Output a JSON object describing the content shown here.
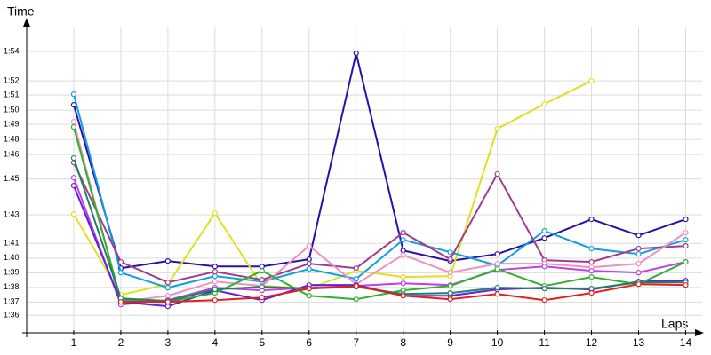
{
  "chart_data": {
    "type": "line",
    "y_label": "Time",
    "x_label": "Laps",
    "x": [
      1,
      2,
      3,
      4,
      5,
      6,
      7,
      8,
      9,
      10,
      11,
      12,
      13,
      14
    ],
    "xlim": [
      0,
      14.35
    ],
    "xticks": [
      1,
      2,
      3,
      4,
      5,
      6,
      7,
      8,
      9,
      10,
      11,
      12,
      13,
      14
    ],
    "ylim": [
      94.8,
      115.7
    ],
    "yticks": [
      {
        "value": 96,
        "label": "1:36"
      },
      {
        "value": 96.9,
        "label": "1:37"
      },
      {
        "value": 97.9,
        "label": "1:38"
      },
      {
        "value": 98.9,
        "label": "1:39"
      },
      {
        "value": 99.9,
        "label": "1:40"
      },
      {
        "value": 100.9,
        "label": "1:41"
      },
      {
        "value": 102.85,
        "label": "1:43"
      },
      {
        "value": 105.3,
        "label": "1:45"
      },
      {
        "value": 106.97,
        "label": "1:46"
      },
      {
        "value": 108,
        "label": "1:48"
      },
      {
        "value": 109.03,
        "label": "1:49"
      },
      {
        "value": 110,
        "label": "1:50"
      },
      {
        "value": 111.03,
        "label": "1:51"
      },
      {
        "value": 112,
        "label": "1:52"
      },
      {
        "value": 114,
        "label": "1:54"
      }
    ],
    "grid": true,
    "series": [
      {
        "color": "#2a10a8",
        "values": [
          110.36,
          99.21,
          99.7,
          99.33,
          99.33,
          99.82,
          113.88,
          100.42,
          99.7,
          100.18,
          101.27,
          102.55,
          101.45,
          102.55
        ]
      },
      {
        "color": "#e0e020",
        "values": [
          102.91,
          97.39,
          98.12,
          102.97,
          98.0,
          97.82,
          99.03,
          98.61,
          98.67,
          108.73,
          110.42,
          112.0,
          null,
          null
        ]
      },
      {
        "color": "#10a0e0",
        "values": [
          111.09,
          98.91,
          97.88,
          98.67,
          98.3,
          99.15,
          98.48,
          101.15,
          100.3,
          99.39,
          101.76,
          100.55,
          100.18,
          101.15
        ]
      },
      {
        "color": "#a03c8c",
        "values": [
          106.42,
          99.64,
          98.24,
          98.97,
          98.42,
          99.52,
          99.21,
          101.64,
          99.82,
          105.64,
          99.76,
          99.64,
          100.55,
          100.73
        ]
      },
      {
        "color": "#f090c0",
        "values": [
          109.21,
          96.91,
          97.33,
          98.3,
          98.0,
          100.73,
          98.12,
          100.12,
          98.91,
          99.52,
          99.52,
          99.27,
          99.52,
          101.64
        ]
      },
      {
        "color": "#c040e0",
        "values": [
          105.39,
          96.73,
          97.03,
          97.88,
          97.7,
          97.88,
          98.0,
          98.18,
          98.06,
          99.09,
          99.33,
          99.03,
          98.91,
          99.64
        ]
      },
      {
        "color": "#6020e0",
        "values": [
          104.85,
          96.91,
          96.61,
          97.7,
          97.03,
          98.06,
          98.06,
          97.33,
          97.33,
          97.76,
          97.88,
          97.76,
          98.3,
          98.36
        ]
      },
      {
        "color": "#30b030",
        "values": [
          108.85,
          97.03,
          96.91,
          97.52,
          99.03,
          97.33,
          97.09,
          97.7,
          98.0,
          99.15,
          98.0,
          98.61,
          98.12,
          99.64
        ]
      },
      {
        "color": "#208060",
        "values": [
          106.73,
          97.15,
          96.97,
          97.76,
          97.94,
          97.82,
          97.94,
          97.45,
          97.52,
          97.88,
          97.82,
          97.82,
          98.24,
          98.24
        ]
      },
      {
        "color": "#e02020",
        "values": [
          null,
          96.91,
          96.91,
          97.03,
          97.21,
          97.82,
          98.0,
          97.33,
          97.09,
          97.45,
          97.03,
          97.52,
          98.12,
          98.06
        ]
      }
    ]
  }
}
